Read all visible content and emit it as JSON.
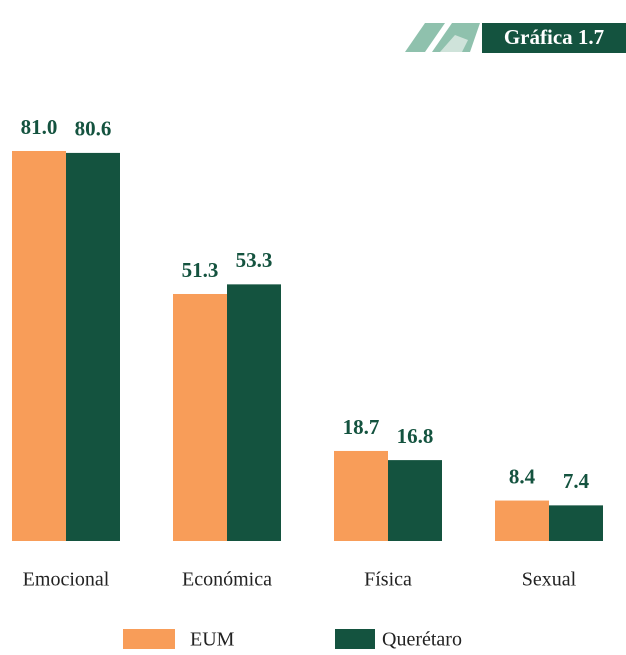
{
  "chart_data": {
    "type": "bar",
    "title": "Gráfica 1.7",
    "categories": [
      "Emocional",
      "Económica",
      "Física",
      "Sexual"
    ],
    "series": [
      {
        "name": "EUM",
        "color": "#f89d59",
        "values": [
          81.0,
          51.3,
          18.7,
          8.4
        ],
        "value_labels": [
          "81.0",
          "51.3",
          "18.7",
          "8.4"
        ]
      },
      {
        "name": "Querétaro",
        "color": "#14533f",
        "values": [
          80.6,
          53.3,
          16.8,
          7.4
        ],
        "value_labels": [
          "80.6",
          "53.3",
          "16.8",
          "7.4"
        ]
      }
    ]
  }
}
